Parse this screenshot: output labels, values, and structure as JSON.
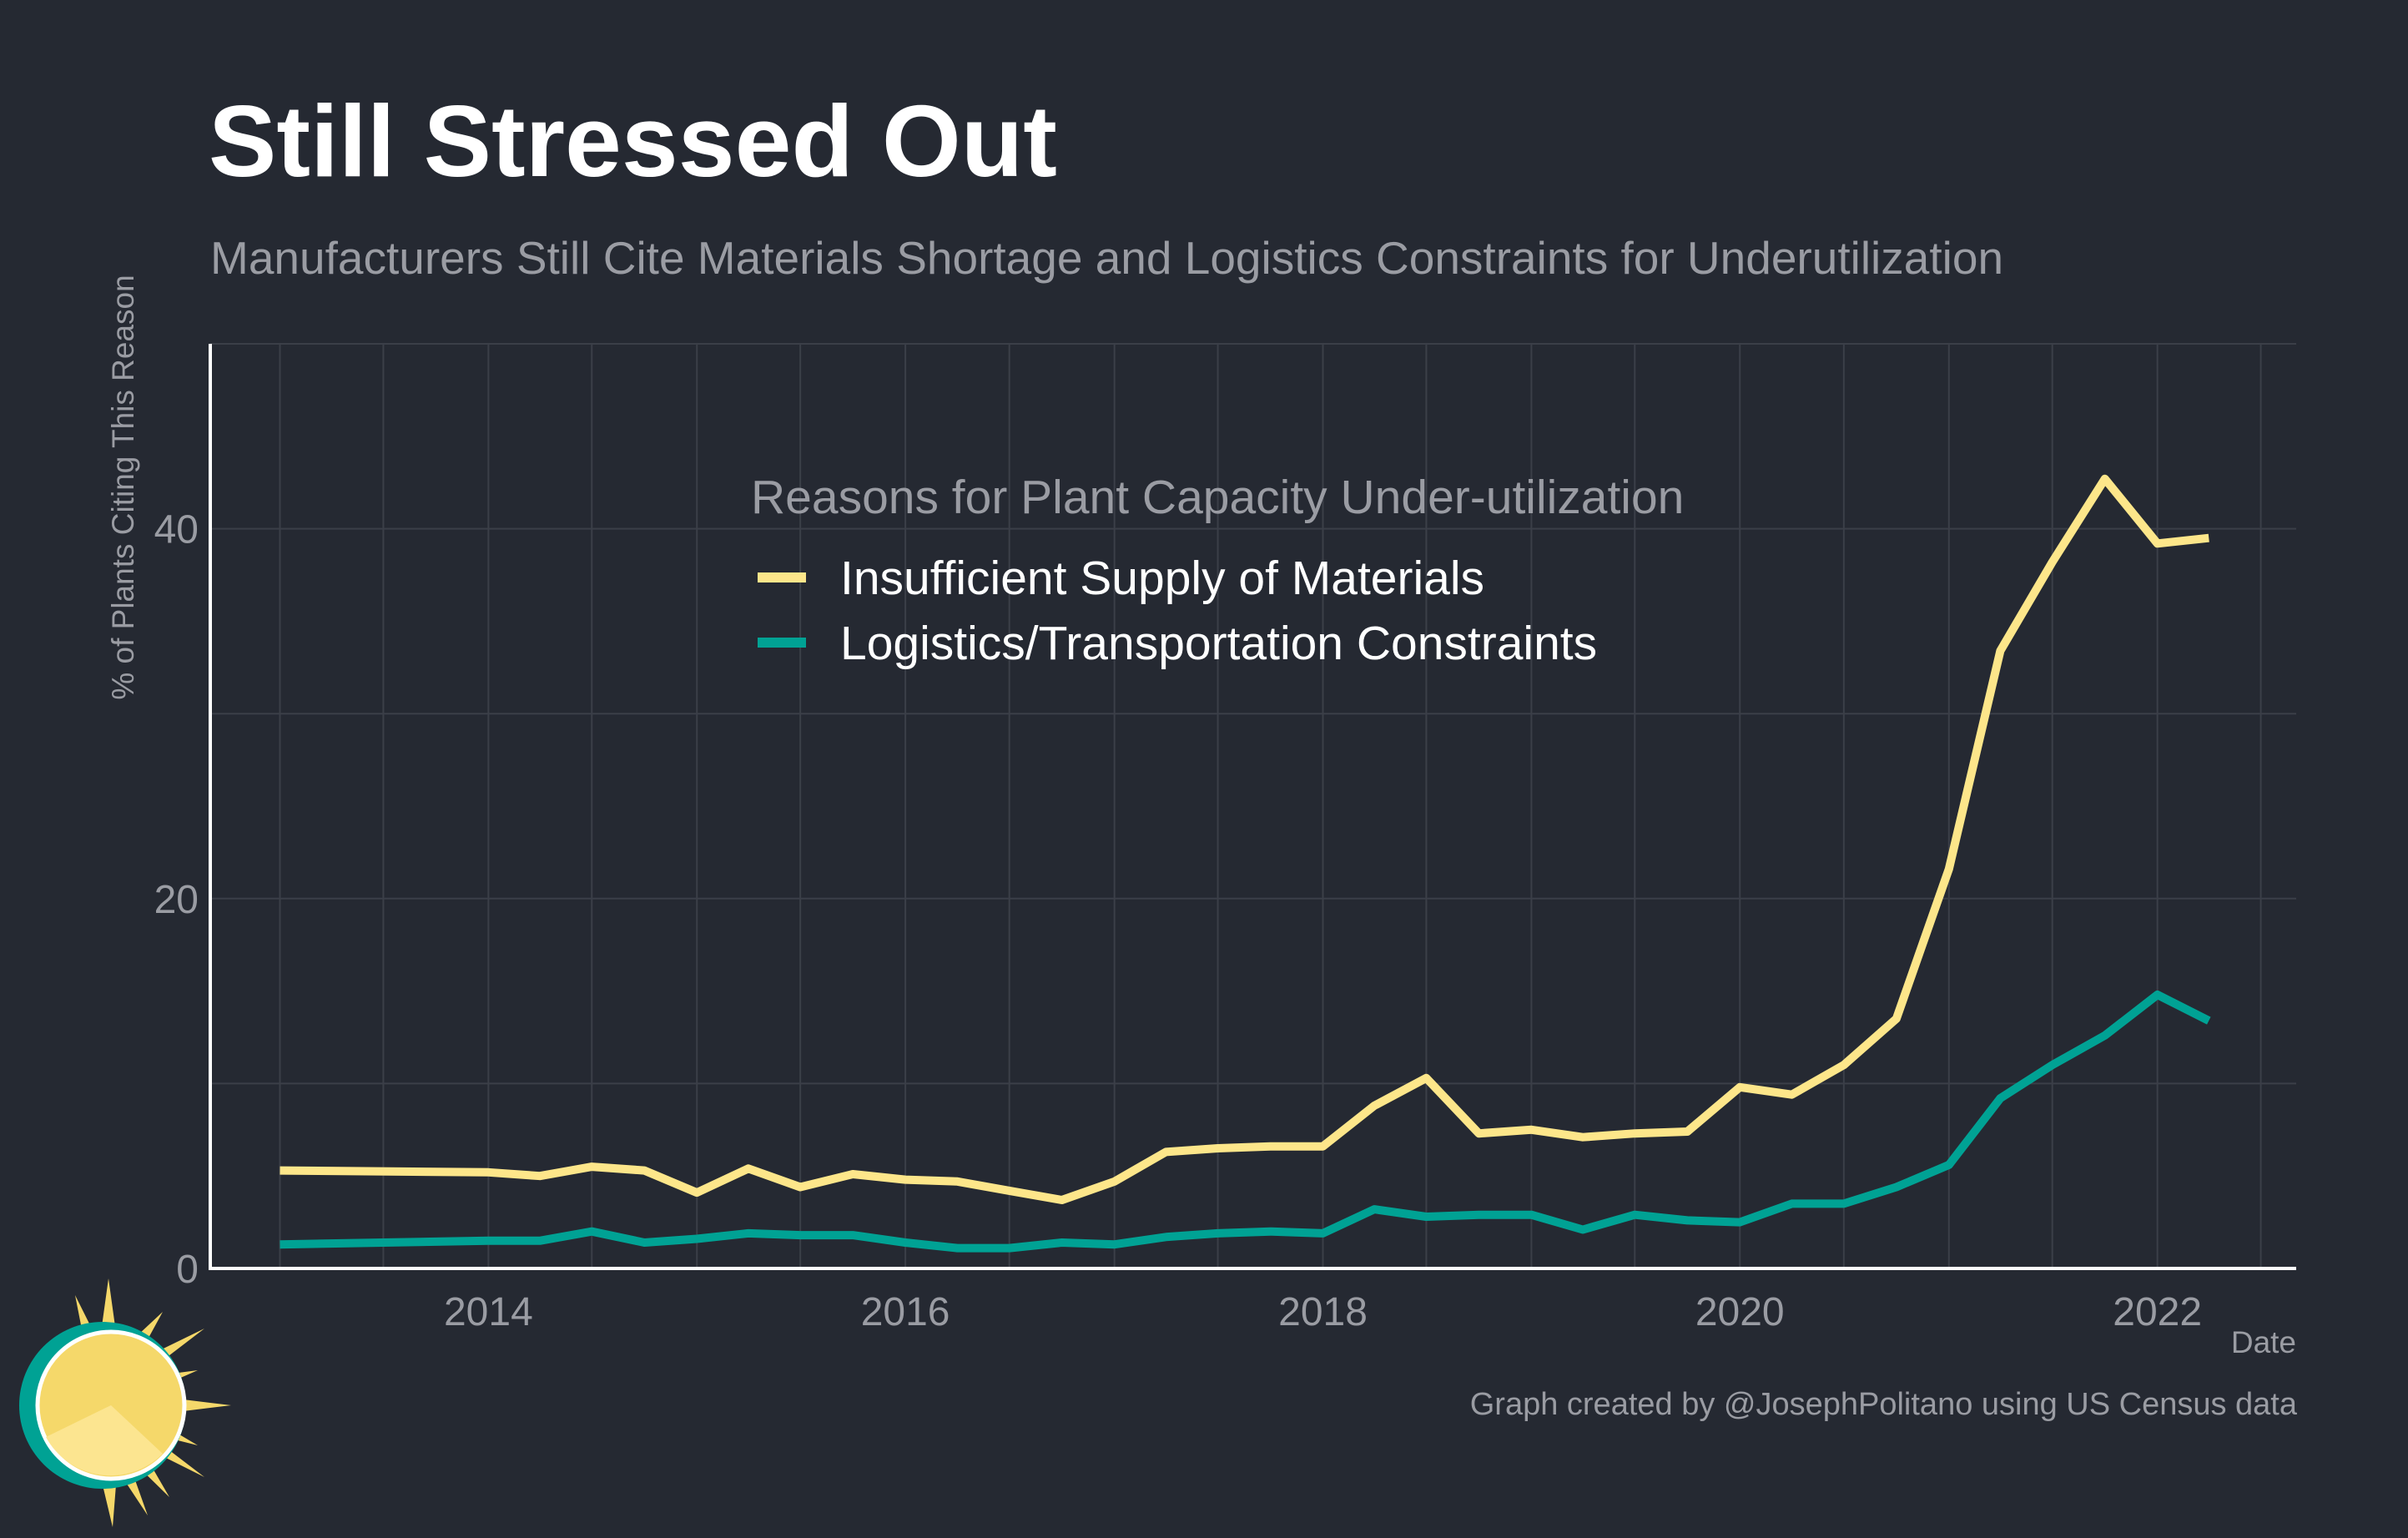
{
  "title": "Still Stressed Out",
  "subtitle": "Manufacturers Still Cite Materials Shortage and Logistics Constraints for Underutilization",
  "caption": "Graph created by @JosephPolitano using US Census data",
  "colors": {
    "background": "#252932",
    "grid": "#3b3f48",
    "axis": "#ffffff",
    "text_muted": "#9a9ca3",
    "materials": "#fde68a",
    "logistics": "#00a294"
  },
  "chart_data": {
    "type": "line",
    "xlabel": "Date",
    "ylabel": "% of Plants Citing This Reason",
    "ylim": [
      0,
      50
    ],
    "xlim": [
      "2012-09-01",
      "2022-09-01"
    ],
    "yticks": [
      0,
      20,
      40
    ],
    "xticks": [
      {
        "label": "2014",
        "date": "2014-01-01"
      },
      {
        "label": "2016",
        "date": "2016-01-01"
      },
      {
        "label": "2018",
        "date": "2018-01-01"
      },
      {
        "label": "2020",
        "date": "2020-01-01"
      },
      {
        "label": "2022",
        "date": "2022-01-01"
      }
    ],
    "grid": true,
    "legend": {
      "title": "Reasons for Plant Capacity Under-utilization",
      "position": "top-center"
    },
    "x": [
      "2013-01-01",
      "2014-01-01",
      "2014-04-01",
      "2014-07-01",
      "2014-10-01",
      "2015-01-01",
      "2015-04-01",
      "2015-07-01",
      "2015-10-01",
      "2016-01-01",
      "2016-04-01",
      "2016-07-01",
      "2016-10-01",
      "2017-01-01",
      "2017-04-01",
      "2017-07-01",
      "2017-10-01",
      "2018-01-01",
      "2018-04-01",
      "2018-07-01",
      "2018-10-01",
      "2019-01-01",
      "2019-04-01",
      "2019-07-01",
      "2019-10-01",
      "2020-01-01",
      "2020-04-01",
      "2020-07-01",
      "2020-10-01",
      "2021-01-01",
      "2021-04-01",
      "2021-07-01",
      "2021-10-01",
      "2022-01-01",
      "2022-04-01"
    ],
    "series": [
      {
        "name": "Insufficient Supply of Materials",
        "color": "#fde68a",
        "values": [
          5.3,
          5.2,
          5.0,
          5.5,
          5.3,
          4.1,
          5.4,
          4.4,
          5.1,
          4.8,
          4.7,
          4.2,
          3.7,
          4.7,
          6.3,
          6.5,
          6.6,
          6.6,
          8.8,
          10.3,
          7.3,
          7.5,
          7.1,
          7.3,
          7.4,
          9.8,
          9.4,
          11.0,
          13.5,
          21.6,
          33.4,
          38.2,
          42.7,
          39.2,
          39.5
        ]
      },
      {
        "name": "Logistics/Transportation Constraints",
        "color": "#00a294",
        "values": [
          1.3,
          1.5,
          1.5,
          2.0,
          1.4,
          1.6,
          1.9,
          1.8,
          1.8,
          1.4,
          1.1,
          1.1,
          1.4,
          1.3,
          1.7,
          1.9,
          2.0,
          1.9,
          3.2,
          2.8,
          2.9,
          2.9,
          2.1,
          2.9,
          2.6,
          2.5,
          3.5,
          3.5,
          4.4,
          5.6,
          9.2,
          11.0,
          12.6,
          14.8,
          13.4
        ]
      }
    ]
  }
}
